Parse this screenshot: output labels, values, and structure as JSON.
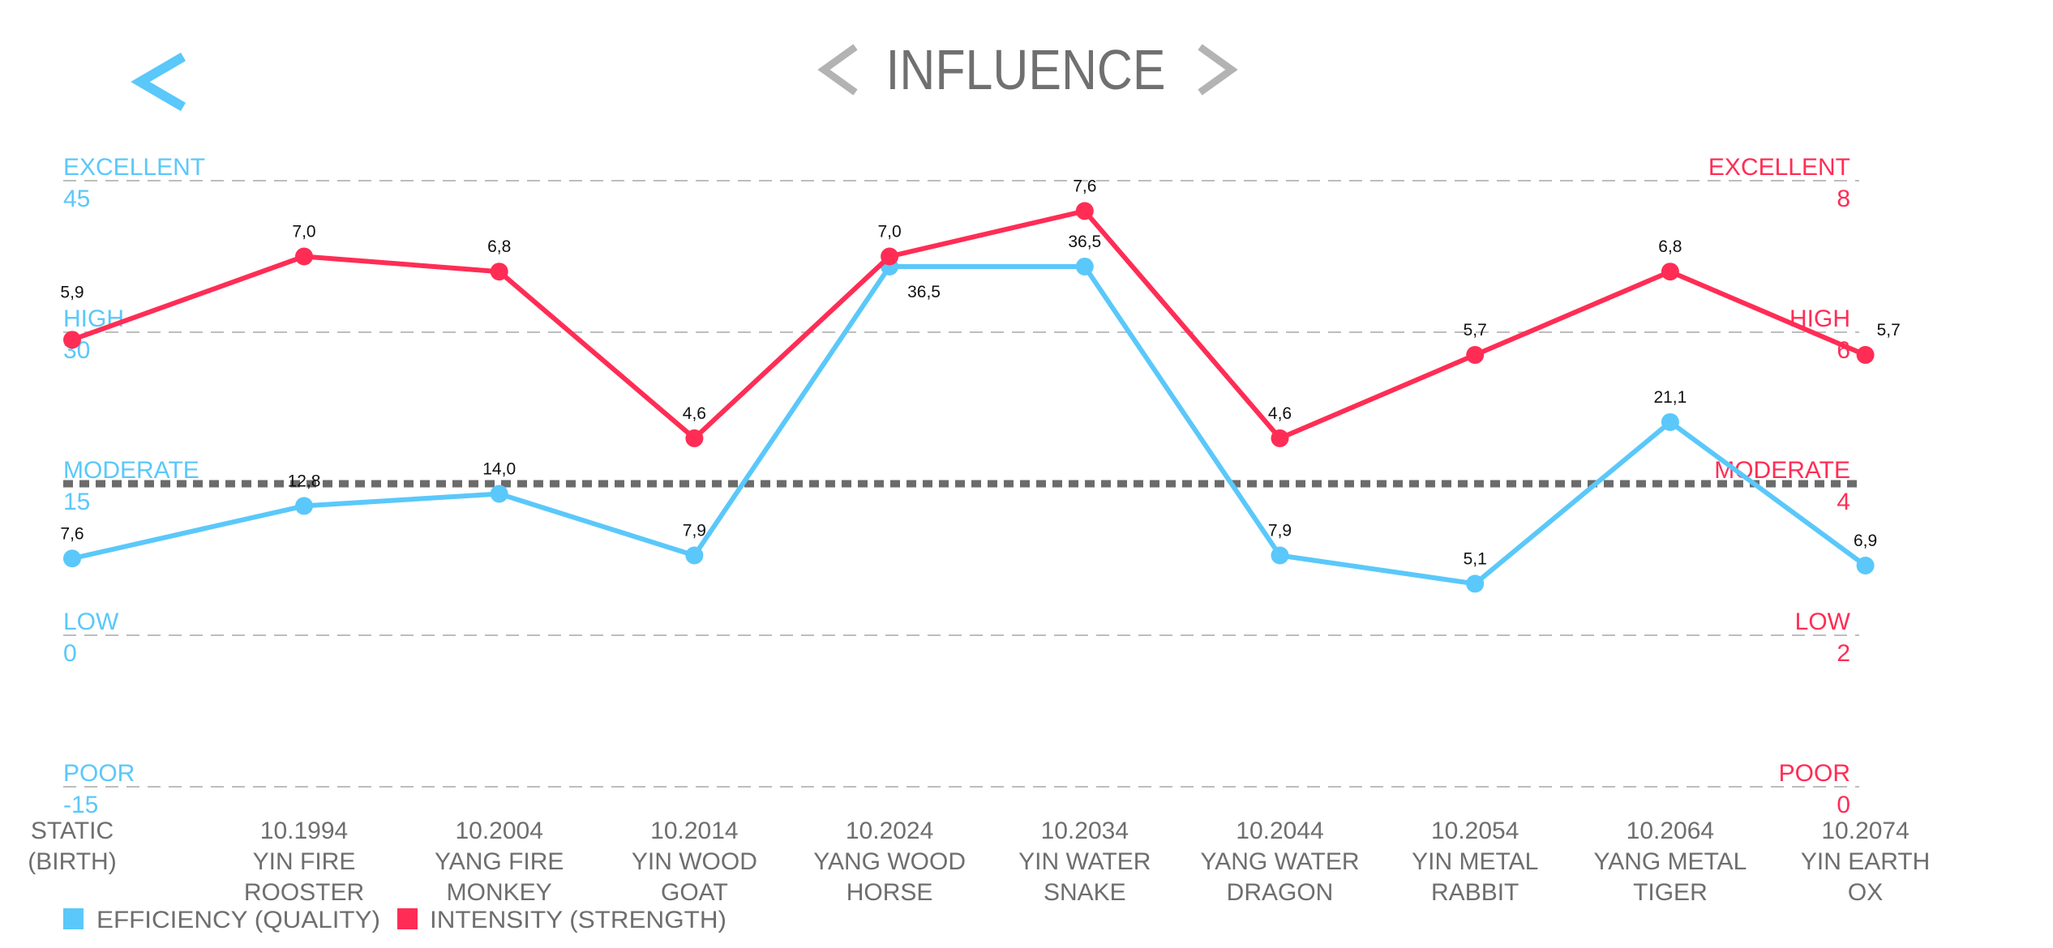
{
  "header": {
    "back_icon": "chevron-left-icon",
    "title": "INFLUENCE",
    "prev_icon": "chevron-left-icon",
    "next_icon": "chevron-right-icon"
  },
  "colors": {
    "efficiency": "#5AC8FA",
    "intensity": "#FF2D55",
    "grid": "#BDBDBD",
    "threshold": "#6B6B6B",
    "text": "#6E6E6E",
    "title_chevron": "#B3B3B3"
  },
  "chart_data": {
    "type": "line",
    "title": "INFLUENCE",
    "categories": [
      [
        "STATIC",
        "(BIRTH)",
        ""
      ],
      [
        "10.1994",
        "YIN FIRE",
        "ROOSTER"
      ],
      [
        "10.2004",
        "YANG FIRE",
        "MONKEY"
      ],
      [
        "10.2014",
        "YIN WOOD",
        "GOAT"
      ],
      [
        "10.2024",
        "YANG WOOD",
        "HORSE"
      ],
      [
        "10.2034",
        "YIN WATER",
        "SNAKE"
      ],
      [
        "10.2044",
        "YANG WATER",
        "DRAGON"
      ],
      [
        "10.2054",
        "YIN METAL",
        "RABBIT"
      ],
      [
        "10.2064",
        "YANG METAL",
        "TIGER"
      ],
      [
        "10.2074",
        "YIN EARTH",
        "OX"
      ]
    ],
    "left_axis": {
      "range": [
        -15,
        45
      ],
      "ticks": [
        {
          "value": 45,
          "label": "EXCELLENT",
          "text": "45"
        },
        {
          "value": 30,
          "label": "HIGH",
          "text": "30"
        },
        {
          "value": 15,
          "label": "MODERATE",
          "text": "15"
        },
        {
          "value": 0,
          "label": "LOW",
          "text": "0"
        },
        {
          "value": -15,
          "label": "POOR",
          "text": "-15"
        }
      ]
    },
    "right_axis": {
      "range": [
        0,
        8
      ],
      "ticks": [
        {
          "value": 8,
          "label": "EXCELLENT",
          "text": "8"
        },
        {
          "value": 6,
          "label": "HIGH",
          "text": "6"
        },
        {
          "value": 4,
          "label": "MODERATE",
          "text": "4"
        },
        {
          "value": 2,
          "label": "LOW",
          "text": "2"
        },
        {
          "value": 0,
          "label": "POOR",
          "text": "0"
        }
      ]
    },
    "threshold_line": {
      "left_value": 15,
      "style": "thick-dotted"
    },
    "series": [
      {
        "name": "EFFICIENCY (QUALITY)",
        "axis": "left",
        "values": [
          7.6,
          12.8,
          14.0,
          7.9,
          36.5,
          36.5,
          7.9,
          5.1,
          21.1,
          6.9
        ],
        "labels": [
          "7,6",
          "12,8",
          "14,0",
          "7,9",
          "36,5",
          "36,5",
          "7,9",
          "5,1",
          "21,1",
          "6,9"
        ]
      },
      {
        "name": "INTENSITY (STRENGTH)",
        "axis": "right",
        "values": [
          5.9,
          7.0,
          6.8,
          4.6,
          7.0,
          7.6,
          4.6,
          5.7,
          6.8,
          5.7
        ],
        "labels": [
          "5,9",
          "7,0",
          "6,8",
          "4,6",
          "7,0",
          "7,6",
          "4,6",
          "5,7",
          "6,8",
          "5,7"
        ]
      }
    ],
    "legend": {
      "placement": "bottom-left"
    },
    "grid": true
  }
}
